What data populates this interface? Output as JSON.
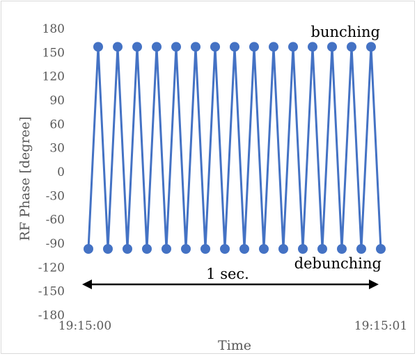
{
  "chart_data": {
    "type": "line",
    "xlabel": "Time",
    "ylabel": "RF Phase [degree]",
    "ylim": [
      -180,
      180
    ],
    "y_ticks": [
      "180",
      "150",
      "120",
      "90",
      "60",
      "30",
      "0",
      "-30",
      "-60",
      "-90",
      "-120",
      "-150",
      "-180"
    ],
    "x_tick_labels": [
      "19:15:00",
      "19:15:01"
    ],
    "grid": false,
    "series": [
      {
        "color": "#4472c4",
        "x": [
          0.0,
          0.05,
          0.1,
          0.15,
          0.2,
          0.25,
          0.3,
          0.35,
          0.4,
          0.45,
          0.5,
          0.55,
          0.6,
          0.65,
          0.7,
          0.75,
          0.8,
          0.85,
          0.9,
          0.95,
          1.0,
          1.05,
          1.1,
          1.15,
          1.2,
          1.25,
          1.3,
          1.35,
          1.4,
          1.45,
          1.5
        ],
        "values": [
          -97,
          157,
          -97,
          157,
          -97,
          157,
          -97,
          157,
          -97,
          157,
          -97,
          157,
          -97,
          157,
          -97,
          157,
          -97,
          157,
          -97,
          157,
          -97,
          157,
          -97,
          157,
          -97,
          157,
          -97,
          157,
          -97,
          157,
          -97
        ]
      }
    ],
    "annotations": {
      "top": "bunching",
      "bottom": "debunching",
      "span": "1 sec."
    }
  }
}
